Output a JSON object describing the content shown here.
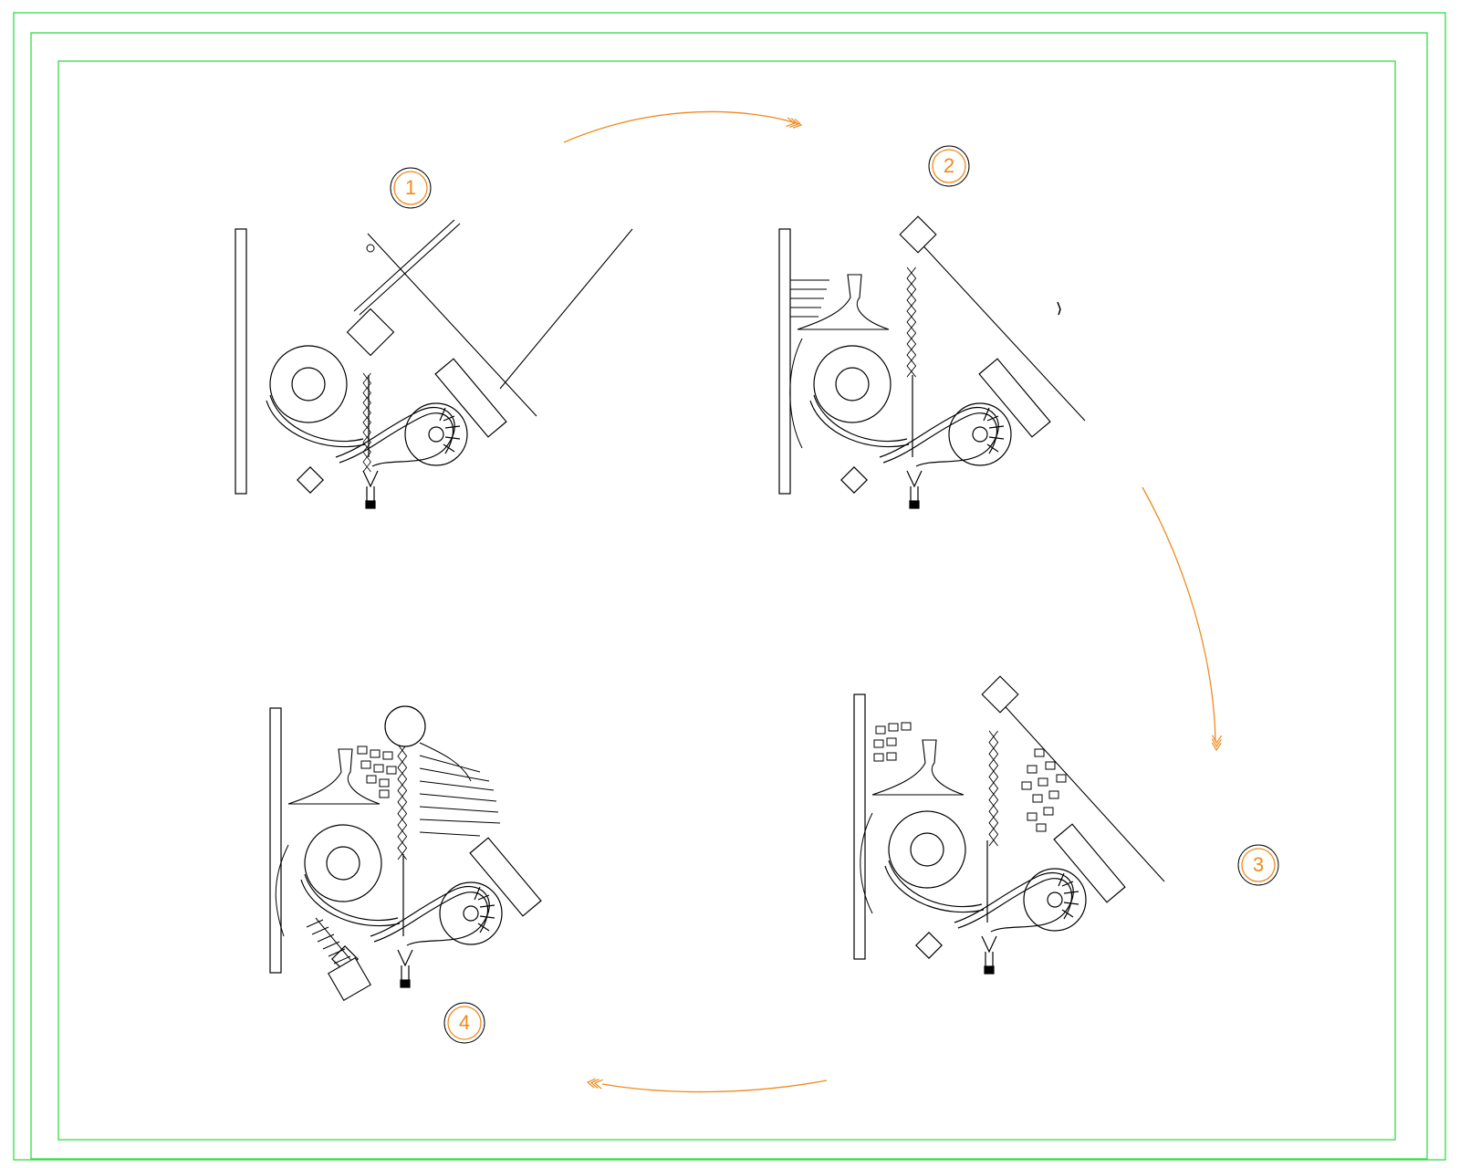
{
  "colors": {
    "frame": "#33dd44",
    "accent": "#f08a1c",
    "line": "#000000",
    "background": "#ffffff"
  },
  "stages": [
    {
      "number": "1"
    },
    {
      "number": "2"
    },
    {
      "number": "3"
    },
    {
      "number": "4"
    }
  ],
  "icons": {
    "arrow": "double-chevron-arrow-icon",
    "marker": "double-circle-marker-icon"
  }
}
